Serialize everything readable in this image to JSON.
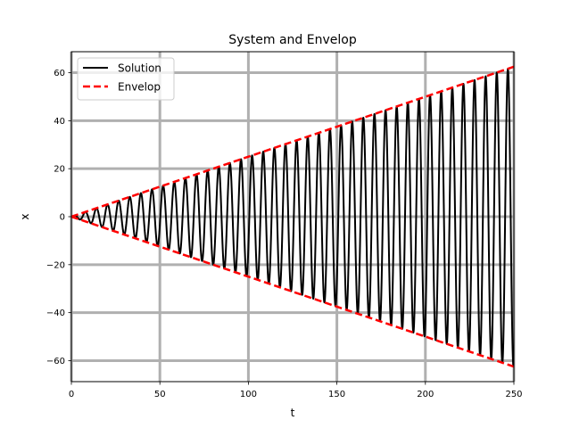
{
  "chart_data": {
    "type": "line",
    "title": "System and Envelop",
    "xlabel": "t",
    "ylabel": "x",
    "xlim": [
      0,
      250
    ],
    "ylim": [
      -68.75,
      68.75
    ],
    "xticks": [
      0,
      50,
      100,
      150,
      200,
      250
    ],
    "yticks": [
      -60,
      -40,
      -20,
      0,
      20,
      40,
      60
    ],
    "grid": true,
    "legend_position": "upper-left",
    "series": [
      {
        "name": "Solution",
        "color": "#000000",
        "style": "solid",
        "model": "x(t) = 0.25 * t * sin(t)",
        "amplitude_per_t": 0.25,
        "angular_frequency": 1.0,
        "t_range": [
          0,
          250
        ]
      },
      {
        "name": "Envelop",
        "color": "#ff0000",
        "style": "dashed",
        "model": "x(t) = +/- 0.25 * t",
        "upper": {
          "x": [
            0,
            250
          ],
          "y": [
            0,
            62.5
          ]
        },
        "lower": {
          "x": [
            0,
            250
          ],
          "y": [
            0,
            -62.5
          ]
        }
      }
    ]
  }
}
